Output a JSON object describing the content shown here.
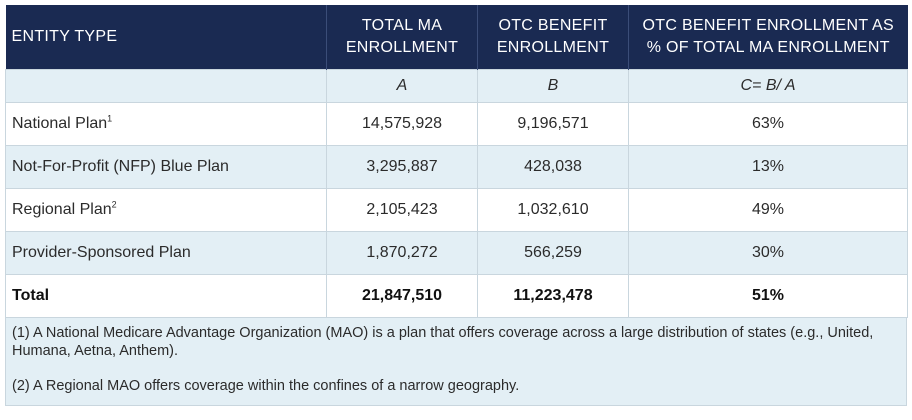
{
  "headers": {
    "entity_type": "ENTITY TYPE",
    "total_ma_line1": "TOTAL MA",
    "total_ma_line2": "ENROLLMENT",
    "otc_line1": "OTC BENEFIT",
    "otc_line2": "ENROLLMENT",
    "pct_line1": "OTC BENEFIT ENROLLMENT AS",
    "pct_line2": "% OF TOTAL MA ENROLLMENT"
  },
  "subheaders": {
    "a": "A",
    "b": "B",
    "c": "C= B/ A"
  },
  "rows": [
    {
      "entity": "National Plan",
      "sup": "1",
      "total_ma": "14,575,928",
      "otc": "9,196,571",
      "pct": "63%"
    },
    {
      "entity": "Not-For-Profit (NFP) Blue Plan",
      "sup": "",
      "total_ma": "3,295,887",
      "otc": "428,038",
      "pct": "13%"
    },
    {
      "entity": "Regional Plan",
      "sup": "2",
      "total_ma": "2,105,423",
      "otc": "1,032,610",
      "pct": "49%"
    },
    {
      "entity": "Provider-Sponsored Plan",
      "sup": "",
      "total_ma": "1,870,272",
      "otc": "566,259",
      "pct": "30%"
    }
  ],
  "total": {
    "label": "Total",
    "total_ma": "21,847,510",
    "otc": "11,223,478",
    "pct": "51%"
  },
  "notes": {
    "note1": "(1) A National Medicare Advantage Organization (MAO) is a plan that offers coverage across a large distribution of states (e.g., United, Humana, Aetna, Anthem).",
    "note2": "(2) A Regional MAO offers coverage within the confines of a narrow geography."
  },
  "colors": {
    "header_bg": "#1a2a52",
    "row_shade": "#e3eff5",
    "border": "#c9d6de"
  }
}
